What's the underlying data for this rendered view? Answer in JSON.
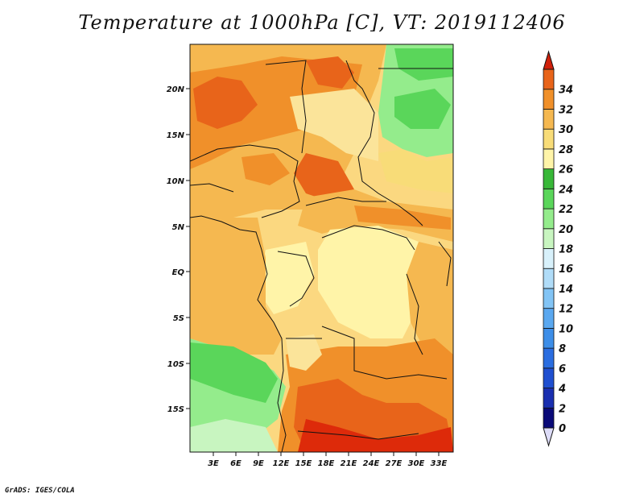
{
  "title": "Temperature at 1000hPa [C], VT: 2019112406",
  "credit": "GrADS: IGES/COLA",
  "map": {
    "lat_ticks": [
      "20N",
      "15N",
      "10N",
      "5N",
      "EQ",
      "5S",
      "10S",
      "15S"
    ],
    "lon_ticks": [
      "3E",
      "6E",
      "9E",
      "12E",
      "15E",
      "18E",
      "21E",
      "24E",
      "27E",
      "30E",
      "33E"
    ]
  },
  "colorbar": {
    "levels": [
      "0",
      "2",
      "4",
      "6",
      "8",
      "10",
      "12",
      "14",
      "16",
      "18",
      "20",
      "22",
      "24",
      "26",
      "28",
      "30",
      "32",
      "34"
    ],
    "colors": [
      "#0a0a78",
      "#1a2fb0",
      "#1f4fd0",
      "#2a6de0",
      "#3d8ee8",
      "#5aa8f0",
      "#82c4f5",
      "#b0dcf8",
      "#d8f1fb",
      "#c8f5c0",
      "#94ec8c",
      "#5ad65a",
      "#38b838",
      "#fff4a8",
      "#f8dc78",
      "#f5b850",
      "#f0902a",
      "#e8641a",
      "#dd2a0a"
    ],
    "under_color": "#dddcf8",
    "over_color": "#d0200a"
  }
}
